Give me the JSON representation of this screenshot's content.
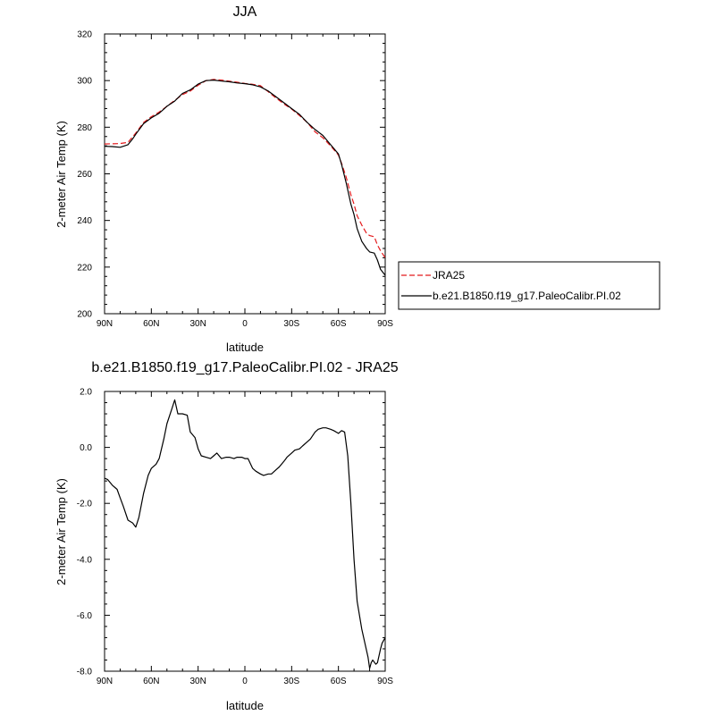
{
  "chart_data": [
    {
      "type": "line",
      "title": "JJA",
      "xlabel": "latitude",
      "ylabel": "2-meter Air Temp (K)",
      "xlim": [
        90,
        -90
      ],
      "ylim": [
        200,
        320
      ],
      "x_ticks": [
        {
          "value": 90,
          "label": "90N"
        },
        {
          "value": 60,
          "label": "60N"
        },
        {
          "value": 30,
          "label": "30N"
        },
        {
          "value": 0,
          "label": "0"
        },
        {
          "value": -30,
          "label": "30S"
        },
        {
          "value": -60,
          "label": "60S"
        },
        {
          "value": -90,
          "label": "90S"
        }
      ],
      "y_ticks": [
        200,
        220,
        240,
        260,
        280,
        300,
        320
      ],
      "legend": {
        "placement": "right-outside",
        "entries": [
          "JRA25",
          "b.e21.B1850.f19_g17.PaleoCalibr.PI.02"
        ]
      },
      "series": [
        {
          "name": "JRA25",
          "color": "#e41a1c",
          "dash": "dashed",
          "x": [
            90,
            85,
            80,
            75,
            70,
            65,
            60,
            55,
            50,
            45,
            40,
            35,
            30,
            25,
            20,
            15,
            10,
            5,
            0,
            -5,
            -10,
            -15,
            -20,
            -25,
            -30,
            -35,
            -40,
            -45,
            -50,
            -55,
            -60,
            -62,
            -65,
            -68,
            -70,
            -72,
            -75,
            -78,
            -80,
            -83,
            -85,
            -87,
            -90
          ],
          "y": [
            272.8,
            272.9,
            273.0,
            273.5,
            277.5,
            282.0,
            284.5,
            286.5,
            289.0,
            291.5,
            294.0,
            295.5,
            298.0,
            300.0,
            300.5,
            300.2,
            299.7,
            299.3,
            298.8,
            298.4,
            297.8,
            295.2,
            292.5,
            290.0,
            287.8,
            285.0,
            282.0,
            278.0,
            275.5,
            272.0,
            268.0,
            264.5,
            258.5,
            251.0,
            247.0,
            242.0,
            238.0,
            234.5,
            233.5,
            233.0,
            229.5,
            227.0,
            224.0
          ]
        },
        {
          "name": "b.e21.B1850.f19_g17.PaleoCalibr.PI.02",
          "color": "#000000",
          "dash": "solid",
          "x": [
            90,
            85,
            80,
            75,
            72,
            70,
            65,
            60,
            55,
            50,
            45,
            40,
            35,
            30,
            25,
            20,
            15,
            10,
            5,
            0,
            -5,
            -10,
            -15,
            -20,
            -25,
            -30,
            -35,
            -40,
            -45,
            -50,
            -55,
            -60,
            -62,
            -65,
            -68,
            -70,
            -72,
            -75,
            -78,
            -80,
            -83,
            -85,
            -87,
            -90
          ],
          "y": [
            271.8,
            271.7,
            271.4,
            272.5,
            275.0,
            277.0,
            281.5,
            284.0,
            286.0,
            289.0,
            291.2,
            294.5,
            296.0,
            298.5,
            300.0,
            300.2,
            299.8,
            299.5,
            299.0,
            298.7,
            298.2,
            297.3,
            295.5,
            293.0,
            290.5,
            288.0,
            285.5,
            282.0,
            279.0,
            276.5,
            272.5,
            268.5,
            264.0,
            256.0,
            247.0,
            242.5,
            236.5,
            231.0,
            228.0,
            226.5,
            226.0,
            223.0,
            219.0,
            216.5
          ]
        }
      ]
    },
    {
      "type": "line",
      "title": "b.e21.B1850.f19_g17.PaleoCalibr.PI.02 - JRA25",
      "xlabel": "latitude",
      "ylabel": "2-meter Air Temp (K)",
      "xlim": [
        90,
        -90
      ],
      "ylim": [
        -8.0,
        2.0
      ],
      "x_ticks": [
        {
          "value": 90,
          "label": "90N"
        },
        {
          "value": 60,
          "label": "60N"
        },
        {
          "value": 30,
          "label": "30N"
        },
        {
          "value": 0,
          "label": "0"
        },
        {
          "value": -30,
          "label": "30S"
        },
        {
          "value": -60,
          "label": "60S"
        },
        {
          "value": -90,
          "label": "90S"
        }
      ],
      "y_ticks": [
        {
          "value": -8,
          "label": "-8.0"
        },
        {
          "value": -6,
          "label": "-6.0"
        },
        {
          "value": -4,
          "label": "-4.0"
        },
        {
          "value": -2,
          "label": "-2.0"
        },
        {
          "value": 0,
          "label": "0.0"
        },
        {
          "value": 2,
          "label": "2.0"
        }
      ],
      "series": [
        {
          "color": "#000000",
          "dash": "solid",
          "x": [
            90,
            88,
            85,
            82,
            80,
            78,
            75,
            72,
            70,
            68,
            65,
            62,
            60,
            57,
            55,
            52,
            50,
            47,
            45,
            43,
            41,
            40,
            37,
            35,
            32,
            30,
            28,
            25,
            22,
            20,
            18,
            15,
            12,
            10,
            7,
            5,
            2,
            0,
            -2,
            -5,
            -7,
            -10,
            -12,
            -15,
            -17,
            -20,
            -22,
            -25,
            -27,
            -30,
            -32,
            -35,
            -37,
            -40,
            -42,
            -45,
            -47,
            -50,
            -52,
            -55,
            -57,
            -60,
            -62,
            -64,
            -66,
            -68,
            -70,
            -72,
            -75,
            -77,
            -79,
            -80,
            -81,
            -82,
            -84,
            -85,
            -87,
            -88,
            -90
          ],
          "y": [
            -1.1,
            -1.15,
            -1.35,
            -1.5,
            -1.8,
            -2.1,
            -2.6,
            -2.7,
            -2.85,
            -2.5,
            -1.65,
            -1.0,
            -0.75,
            -0.6,
            -0.4,
            0.3,
            0.85,
            1.35,
            1.7,
            1.2,
            1.2,
            1.2,
            1.15,
            0.55,
            0.35,
            -0.05,
            -0.3,
            -0.35,
            -0.4,
            -0.3,
            -0.2,
            -0.4,
            -0.35,
            -0.35,
            -0.4,
            -0.35,
            -0.35,
            -0.4,
            -0.4,
            -0.75,
            -0.85,
            -0.95,
            -1.0,
            -0.95,
            -0.95,
            -0.8,
            -0.7,
            -0.5,
            -0.35,
            -0.2,
            -0.1,
            -0.05,
            0.05,
            0.2,
            0.3,
            0.55,
            0.65,
            0.7,
            0.7,
            0.65,
            0.6,
            0.5,
            0.6,
            0.55,
            -0.3,
            -2.0,
            -4.0,
            -5.5,
            -6.5,
            -7.0,
            -7.5,
            -7.9,
            -7.7,
            -7.6,
            -7.75,
            -7.7,
            -7.2,
            -7.0,
            -6.8
          ]
        }
      ]
    }
  ]
}
